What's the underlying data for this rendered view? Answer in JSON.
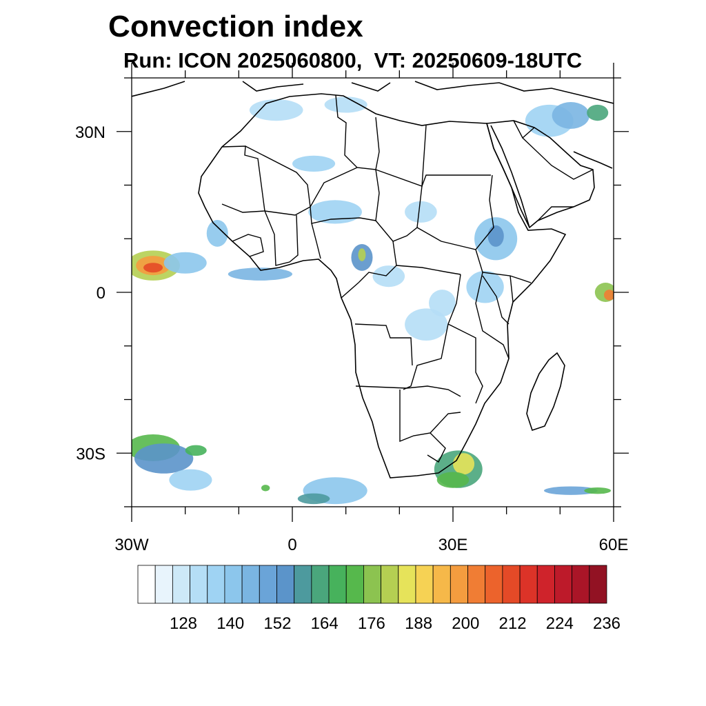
{
  "title": "Convection index",
  "subtitle": "Run: ICON 2025060800,  VT: 20250609-18UTC",
  "map": {
    "lon_range": [
      -30,
      60
    ],
    "lat_range": [
      -40,
      40
    ],
    "x_ticks": [
      {
        "lon": -30,
        "label": "30W"
      },
      {
        "lon": 0,
        "label": "0"
      },
      {
        "lon": 30,
        "label": "30E"
      },
      {
        "lon": 60,
        "label": "60E"
      }
    ],
    "y_ticks": [
      {
        "lat": 30,
        "label": "30N"
      },
      {
        "lat": 0,
        "label": "0"
      },
      {
        "lat": -30,
        "label": "30S"
      }
    ],
    "minor_lon_step": 10,
    "minor_lat_step": 10
  },
  "colorbar": {
    "colors": [
      "#ffffff",
      "#e8f4fc",
      "#cde9f8",
      "#b5def6",
      "#9fd3f3",
      "#8cc6ec",
      "#7ab5e2",
      "#6aa4d8",
      "#5b94ca",
      "#4d9a9e",
      "#4aa67c",
      "#47b25c",
      "#56b84c",
      "#8cc350",
      "#b5cf52",
      "#e6e35a",
      "#f6d254",
      "#f6b849",
      "#f49c3f",
      "#f07d34",
      "#ec632c",
      "#e44a27",
      "#dc3328",
      "#cf232b",
      "#bd1a2a",
      "#aa1527",
      "#921223"
    ],
    "labels": [
      {
        "index": 2,
        "text": "128"
      },
      {
        "index": 5,
        "text": "140"
      },
      {
        "index": 8,
        "text": "152"
      },
      {
        "index": 11,
        "text": "164"
      },
      {
        "index": 14,
        "text": "176"
      },
      {
        "index": 17,
        "text": "188"
      },
      {
        "index": 20,
        "text": "200"
      },
      {
        "index": 23,
        "text": "212"
      },
      {
        "index": 26,
        "text": "224"
      },
      {
        "index": 29,
        "text": "236"
      }
    ]
  },
  "convection_blobs": [
    {
      "lon": -26,
      "lat": 5,
      "rx": 5.0,
      "ry": 2.8,
      "level": 14
    },
    {
      "lon": -26,
      "lat": 5,
      "rx": 3.2,
      "ry": 1.8,
      "level": 18
    },
    {
      "lon": -26,
      "lat": 4.6,
      "rx": 1.8,
      "ry": 0.9,
      "level": 21
    },
    {
      "lon": -20,
      "lat": 5.5,
      "rx": 4.0,
      "ry": 2.0,
      "level": 5
    },
    {
      "lon": -6,
      "lat": 3.4,
      "rx": 6.0,
      "ry": 1.2,
      "level": 6
    },
    {
      "lon": -26,
      "lat": -29,
      "rx": 5.0,
      "ry": 2.5,
      "level": 12
    },
    {
      "lon": -24,
      "lat": -31,
      "rx": 5.5,
      "ry": 2.8,
      "level": 8
    },
    {
      "lon": -18,
      "lat": -29.5,
      "rx": 2.0,
      "ry": 1.0,
      "level": 11
    },
    {
      "lon": -19,
      "lat": -35,
      "rx": 4.0,
      "ry": 2.0,
      "level": 4
    },
    {
      "lon": 8,
      "lat": -37,
      "rx": 6.0,
      "ry": 2.5,
      "level": 5
    },
    {
      "lon": 4,
      "lat": -38.5,
      "rx": 3.0,
      "ry": 1.0,
      "level": 9
    },
    {
      "lon": -5,
      "lat": -36.5,
      "rx": 0.8,
      "ry": 0.6,
      "level": 12
    },
    {
      "lon": 31,
      "lat": -33,
      "rx": 4.5,
      "ry": 3.5,
      "level": 10
    },
    {
      "lon": 32,
      "lat": -32,
      "rx": 2.0,
      "ry": 2.0,
      "level": 15
    },
    {
      "lon": 30,
      "lat": -35,
      "rx": 3.0,
      "ry": 1.5,
      "level": 12
    },
    {
      "lon": 52,
      "lat": -37,
      "rx": 5.0,
      "ry": 0.8,
      "level": 7
    },
    {
      "lon": 57,
      "lat": -37,
      "rx": 2.5,
      "ry": 0.6,
      "level": 12
    },
    {
      "lon": 58.5,
      "lat": 0,
      "rx": 2.0,
      "ry": 1.8,
      "level": 13
    },
    {
      "lon": 59.2,
      "lat": -0.5,
      "rx": 1.0,
      "ry": 1.0,
      "level": 19
    },
    {
      "lon": 13,
      "lat": 6.5,
      "rx": 2.0,
      "ry": 2.5,
      "level": 8
    },
    {
      "lon": 13,
      "lat": 7,
      "rx": 0.7,
      "ry": 1.2,
      "level": 14
    },
    {
      "lon": 8,
      "lat": 15,
      "rx": 5.0,
      "ry": 2.2,
      "level": 4
    },
    {
      "lon": 4,
      "lat": 24,
      "rx": 4.0,
      "ry": 1.5,
      "level": 4
    },
    {
      "lon": 38,
      "lat": 10,
      "rx": 4.0,
      "ry": 4.0,
      "level": 5
    },
    {
      "lon": 38,
      "lat": 10.5,
      "rx": 1.5,
      "ry": 2.0,
      "level": 8
    },
    {
      "lon": 36,
      "lat": 1,
      "rx": 3.5,
      "ry": 3.0,
      "level": 4
    },
    {
      "lon": 25,
      "lat": -6,
      "rx": 4.0,
      "ry": 3.0,
      "level": 3
    },
    {
      "lon": 28,
      "lat": -2,
      "rx": 2.5,
      "ry": 2.5,
      "level": 3
    },
    {
      "lon": 48,
      "lat": 32,
      "rx": 4.5,
      "ry": 3.0,
      "level": 4
    },
    {
      "lon": 52,
      "lat": 33,
      "rx": 3.5,
      "ry": 2.5,
      "level": 6
    },
    {
      "lon": 57,
      "lat": 33.5,
      "rx": 2.0,
      "ry": 1.5,
      "level": 10
    },
    {
      "lon": -3,
      "lat": 34,
      "rx": 5.0,
      "ry": 2.0,
      "level": 3
    },
    {
      "lon": 10,
      "lat": 35,
      "rx": 4.0,
      "ry": 1.5,
      "level": 3
    },
    {
      "lon": 24,
      "lat": 15,
      "rx": 3.0,
      "ry": 2.0,
      "level": 3
    },
    {
      "lon": -14,
      "lat": 11,
      "rx": 2.0,
      "ry": 2.5,
      "level": 5
    },
    {
      "lon": 18,
      "lat": 3,
      "rx": 3.0,
      "ry": 2.0,
      "level": 3
    }
  ]
}
